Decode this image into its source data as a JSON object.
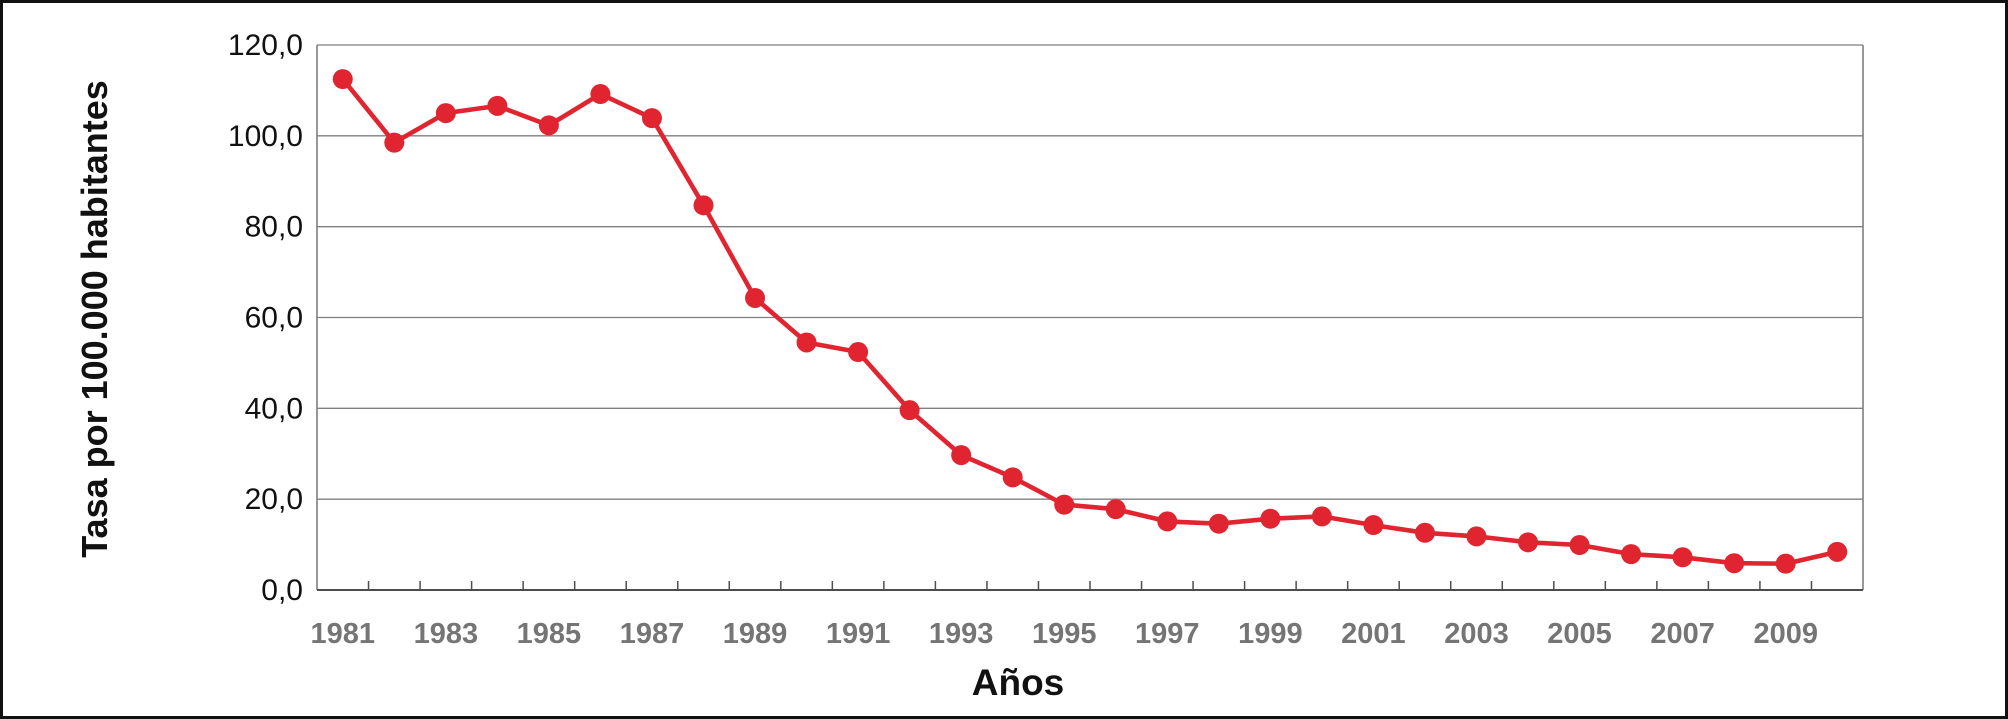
{
  "figure": {
    "background": "#ffffff",
    "frame_color": "#111111"
  },
  "chart_data": {
    "type": "line",
    "title": "",
    "xlabel": "Años",
    "ylabel": "Tasa por 100.000 habitantes",
    "x": [
      1981,
      1982,
      1983,
      1984,
      1985,
      1986,
      1987,
      1988,
      1989,
      1990,
      1991,
      1992,
      1993,
      1994,
      1995,
      1996,
      1997,
      1998,
      1999,
      2000,
      2001,
      2002,
      2003,
      2004,
      2005,
      2006,
      2007,
      2008,
      2009,
      2010
    ],
    "values": [
      112.5,
      98.5,
      105.0,
      106.6,
      102.3,
      109.2,
      103.9,
      84.7,
      64.3,
      54.5,
      52.4,
      39.6,
      29.7,
      24.8,
      18.8,
      17.8,
      15.1,
      14.6,
      15.7,
      16.2,
      14.3,
      12.6,
      11.8,
      10.5,
      9.9,
      7.9,
      7.2,
      5.9,
      5.8,
      8.4
    ],
    "ylim": [
      0,
      120
    ],
    "ytick_step": 20,
    "ytick_labels": [
      "0,0",
      "20,0",
      "40,0",
      "60,0",
      "80,0",
      "100,0",
      "120,0"
    ],
    "xtick_labels": [
      "1981",
      "1983",
      "1985",
      "1987",
      "1989",
      "1991",
      "1993",
      "1995",
      "1997",
      "1999",
      "2001",
      "2003",
      "2005",
      "2007",
      "2009"
    ],
    "grid": true,
    "legend_position": "none",
    "marker": "circle",
    "line_color": "#e02530",
    "marker_color": "#e02530",
    "gridline_color": "#7f7f7f",
    "axis_line_color": "#4d4d4d",
    "ytick_label_color": "#111111",
    "xtick_label_color": "#757575"
  }
}
